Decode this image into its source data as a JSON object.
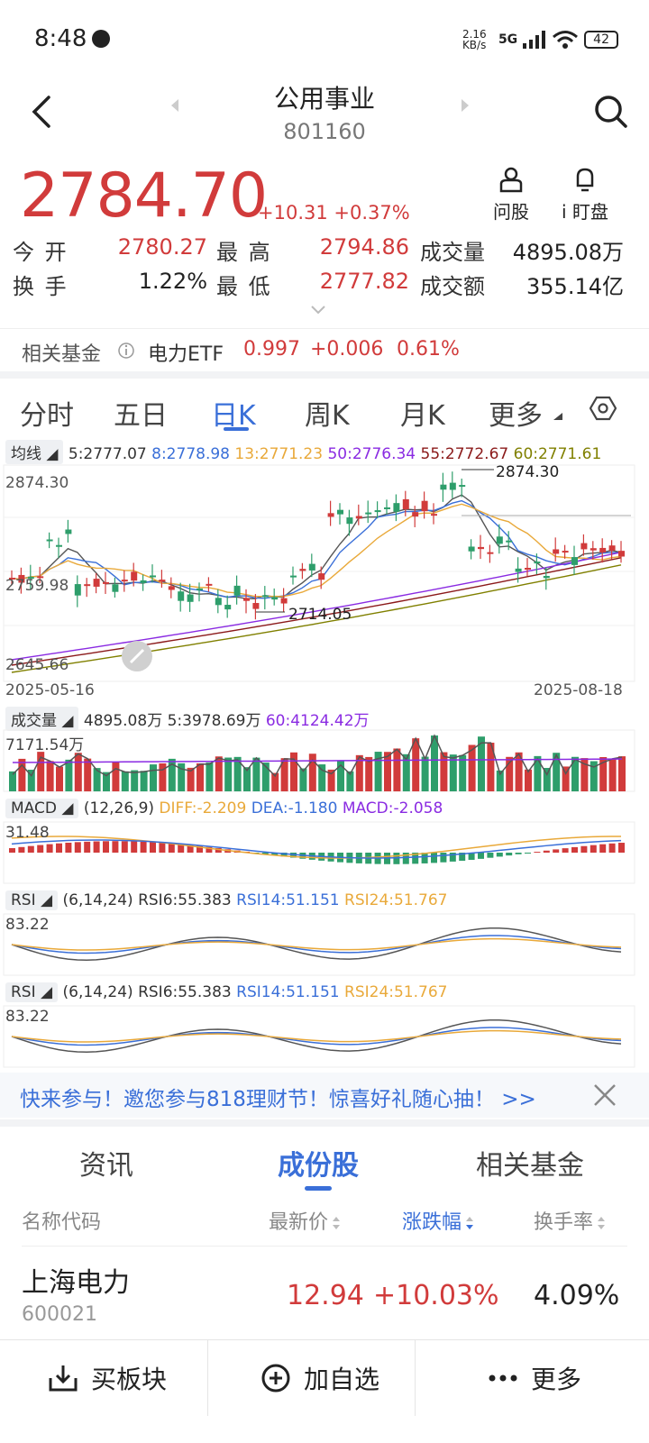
{
  "status_bar": {
    "time": "8:48",
    "net_speed": "2.16 KB/s",
    "network": "5G",
    "battery": "42"
  },
  "header": {
    "title": "公用事业",
    "code": "801160"
  },
  "quote": {
    "price": "2784.70",
    "change": "+10.31",
    "change_pct": "+0.37%",
    "actions": [
      {
        "label": "问股"
      },
      {
        "label": "i 盯盘"
      }
    ]
  },
  "stats": {
    "open_label": "今 开",
    "open": "2780.27",
    "high_label": "最 高",
    "high": "2794.86",
    "volume_label": "成交量",
    "volume": "4895.08万",
    "turnover_label": "换 手",
    "turnover": "1.22%",
    "low_label": "最 低",
    "low": "2777.82",
    "amount_label": "成交额",
    "amount": "355.14亿"
  },
  "fund": {
    "label": "相关基金",
    "name": "电力ETF",
    "price": "0.997",
    "change": "+0.006",
    "pct": "0.61%"
  },
  "kline_tabs": [
    {
      "label": "分时"
    },
    {
      "label": "五日"
    },
    {
      "label": "日K"
    },
    {
      "label": "周K"
    },
    {
      "label": "月K"
    },
    {
      "label": "更多"
    }
  ],
  "ma": {
    "label": "均线",
    "ma5": "5:2777.07",
    "ma8": "8:2778.98",
    "ma13": "13:2771.23",
    "ma50": "50:2776.34",
    "ma55": "55:2772.67",
    "ma60": "60:2771.61"
  },
  "kline": {
    "y_top": "2874.30",
    "y_mid": "2759.98",
    "y_bot": "2645.66",
    "high_mark": "2874.30",
    "low_mark": "2714.05",
    "start_date": "2025-05-16",
    "end_date": "2025-08-18"
  },
  "volume": {
    "label": "成交量",
    "value": "4895.08万",
    "ma5": "5:3978.69万",
    "ma60": "60:4124.42万",
    "max": "7171.54万"
  },
  "macd": {
    "label": "MACD",
    "params": "(12,26,9)",
    "diff": "DIFF:-2.209",
    "dea": "DEA:-1.180",
    "macd": "MACD:-2.058",
    "top": "31.48"
  },
  "rsi1": {
    "label": "RSI",
    "params": "(6,14,24)",
    "rsi6": "RSI6:55.383",
    "rsi14": "RSI14:51.151",
    "rsi24": "RSI24:51.767",
    "top": "83.22"
  },
  "rsi2": {
    "label": "RSI",
    "params": "(6,14,24)",
    "rsi6": "RSI6:55.383",
    "rsi14": "RSI14:51.151",
    "rsi24": "RSI24:51.767",
    "top": "83.22"
  },
  "banner": {
    "text": "快来参与！邀您参与818理财节！惊喜好礼随心抽！ >>"
  },
  "lower_tabs": [
    {
      "label": "资讯"
    },
    {
      "label": "成份股"
    },
    {
      "label": "相关基金"
    }
  ],
  "table": {
    "headers": {
      "name": "名称代码",
      "price": "最新价",
      "change": "涨跌幅",
      "turnover": "换手率"
    },
    "rows": [
      {
        "name": "上海电力",
        "code": "600021",
        "price": "12.94",
        "change": "+10.03%",
        "turnover": "4.09%"
      }
    ]
  },
  "bottom_bar": {
    "buy": "买板块",
    "add": "加自选",
    "more": "更多"
  },
  "colors": {
    "up": "#d13b3b",
    "down": "#2e9e6b",
    "accent": "#3a6fd8"
  }
}
